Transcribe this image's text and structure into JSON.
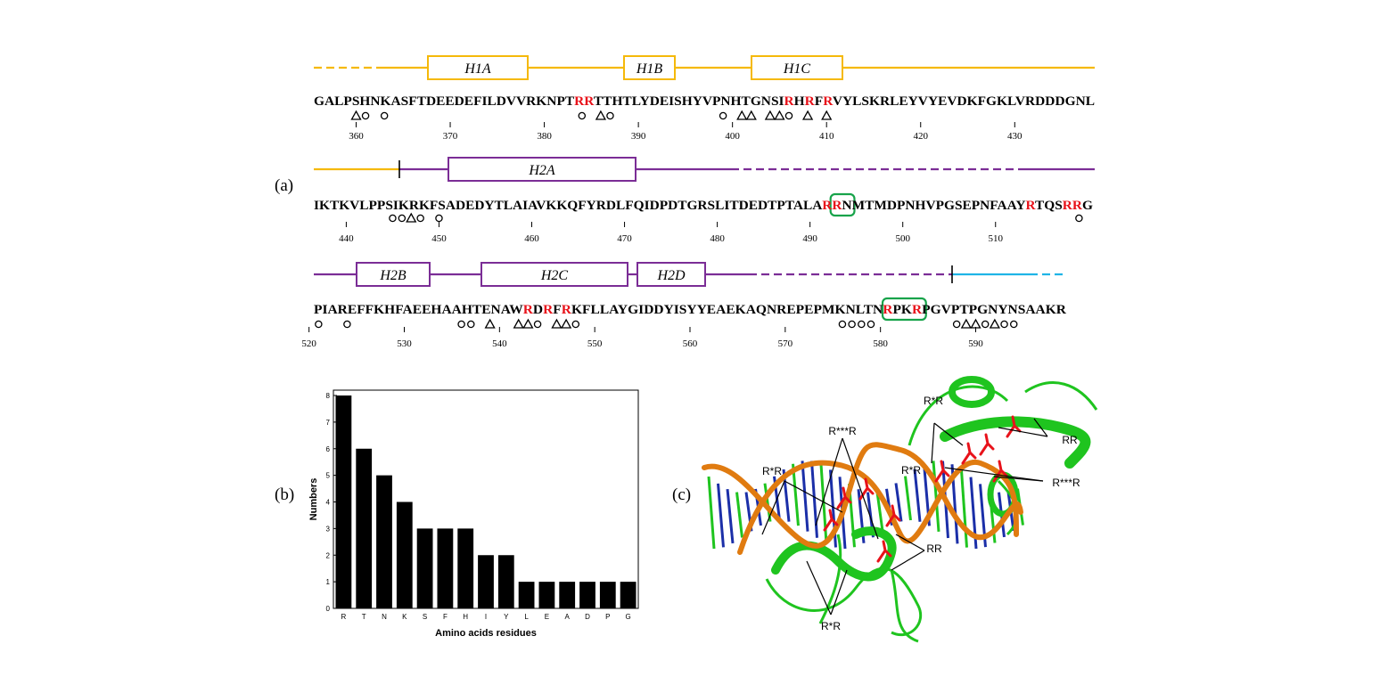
{
  "colors": {
    "domain1": "#f5b90a",
    "domain2": "#7b2d96",
    "domain3": "#1fb4e6",
    "highlight_residue": "#e8121a",
    "motif_box": "#17a34a",
    "bar": "#000000",
    "protein": "#1fc41f",
    "dna_backbone": "#e07b10",
    "dna_bases": "#1b2fa8"
  },
  "panel_labels": {
    "a": "(a)",
    "b": "(b)",
    "c": "(c)"
  },
  "panel_a": {
    "rows": [
      {
        "sequence": "GALPSHNKASFTDEEDEFILDVVRKNPTRRTTHTLYDEISHYVPNHTGNSIRHRFRVYLSKRLEYVYEVDKFGKLVRDDDGNL",
        "start": 356,
        "red": [
          28,
          29,
          51,
          53,
          55
        ],
        "motif_boxes": [],
        "helices": [
          {
            "label": "H1A",
            "domain": "domain1"
          },
          {
            "label": "H1B",
            "domain": "domain1"
          },
          {
            "label": "H1C",
            "domain": "domain1"
          }
        ],
        "ticks": [
          "360",
          "370",
          "380",
          "390",
          "400",
          "410",
          "420",
          "430"
        ],
        "markers": [
          {
            "pos": 360,
            "type": "triangle"
          },
          {
            "pos": 361,
            "type": "circle"
          },
          {
            "pos": 363,
            "type": "circle"
          },
          {
            "pos": 384,
            "type": "circle"
          },
          {
            "pos": 386,
            "type": "triangle"
          },
          {
            "pos": 387,
            "type": "circle"
          },
          {
            "pos": 399,
            "type": "circle"
          },
          {
            "pos": 401,
            "type": "triangle"
          },
          {
            "pos": 402,
            "type": "triangle"
          },
          {
            "pos": 404,
            "type": "triangle"
          },
          {
            "pos": 405,
            "type": "triangle"
          },
          {
            "pos": 406,
            "type": "circle"
          },
          {
            "pos": 408,
            "type": "triangle"
          },
          {
            "pos": 410,
            "type": "triangle"
          }
        ]
      },
      {
        "sequence": "IKTKVLPPSIKRKFSADEDYTLAIAVKKQFYRDLFQIDPDTGRSLITDEDTPTALARRNMTMDPNHVPGSEPNFAAYRTQSRRG",
        "start": 437,
        "red": [
          56,
          57,
          77,
          81,
          82
        ],
        "motif_boxes": [
          [
            56,
            57
          ]
        ],
        "helices": [
          {
            "label": "H2A",
            "domain": "domain2"
          }
        ],
        "ticks": [
          "440",
          "450",
          "460",
          "470",
          "480",
          "490",
          "500",
          "510"
        ],
        "markers": [
          {
            "pos": 445,
            "type": "circle"
          },
          {
            "pos": 446,
            "type": "circle"
          },
          {
            "pos": 447,
            "type": "triangle"
          },
          {
            "pos": 448,
            "type": "circle"
          },
          {
            "pos": 450,
            "type": "circle"
          },
          {
            "pos": 519,
            "type": "circle"
          }
        ]
      },
      {
        "sequence": "PIAREFFKHFAEEHAAHTENAWRDRFRKFLLAYGIDDYISYYEAEKAQNREPEPMKNLTNRPKRPGVPTPGNYNSAAKR",
        "start": 521,
        "red": [
          22,
          24,
          26,
          60,
          63
        ],
        "motif_boxes": [
          [
            60,
            63
          ]
        ],
        "helices": [
          {
            "label": "H2B",
            "domain": "domain2"
          },
          {
            "label": "H2C",
            "domain": "domain2"
          },
          {
            "label": "H2D",
            "domain": "domain2"
          }
        ],
        "ticks": [
          "520",
          "530",
          "540",
          "550",
          "560",
          "570",
          "580",
          "590"
        ],
        "markers": [
          {
            "pos": 521,
            "type": "circle"
          },
          {
            "pos": 524,
            "type": "circle"
          },
          {
            "pos": 536,
            "type": "circle"
          },
          {
            "pos": 537,
            "type": "circle"
          },
          {
            "pos": 539,
            "type": "triangle"
          },
          {
            "pos": 542,
            "type": "triangle"
          },
          {
            "pos": 543,
            "type": "triangle"
          },
          {
            "pos": 544,
            "type": "circle"
          },
          {
            "pos": 546,
            "type": "triangle"
          },
          {
            "pos": 547,
            "type": "triangle"
          },
          {
            "pos": 548,
            "type": "circle"
          },
          {
            "pos": 576,
            "type": "circle"
          },
          {
            "pos": 577,
            "type": "circle"
          },
          {
            "pos": 578,
            "type": "circle"
          },
          {
            "pos": 579,
            "type": "circle"
          },
          {
            "pos": 588,
            "type": "circle"
          },
          {
            "pos": 589,
            "type": "triangle"
          },
          {
            "pos": 590,
            "type": "triangle"
          },
          {
            "pos": 591,
            "type": "circle"
          },
          {
            "pos": 592,
            "type": "triangle"
          },
          {
            "pos": 593,
            "type": "circle"
          },
          {
            "pos": 594,
            "type": "circle"
          }
        ]
      }
    ]
  },
  "chart_data": {
    "type": "bar",
    "categories": [
      "R",
      "T",
      "N",
      "K",
      "S",
      "F",
      "H",
      "I",
      "Y",
      "L",
      "E",
      "A",
      "D",
      "P",
      "G"
    ],
    "values": [
      8,
      6,
      5,
      4,
      3,
      3,
      3,
      2,
      2,
      1,
      1,
      1,
      1,
      1,
      1
    ],
    "title": "",
    "xlabel": "Amino acids residues",
    "ylabel": "Numbers",
    "ylim": [
      0,
      8
    ],
    "yticks": [
      "0",
      "1",
      "2",
      "3",
      "4",
      "5",
      "6",
      "7",
      "8"
    ],
    "grid": false
  },
  "panel_c": {
    "annotations": [
      "R***R",
      "R*R",
      "R*R",
      "RR",
      "R*R",
      "R***R",
      "RR",
      "R*R"
    ]
  }
}
